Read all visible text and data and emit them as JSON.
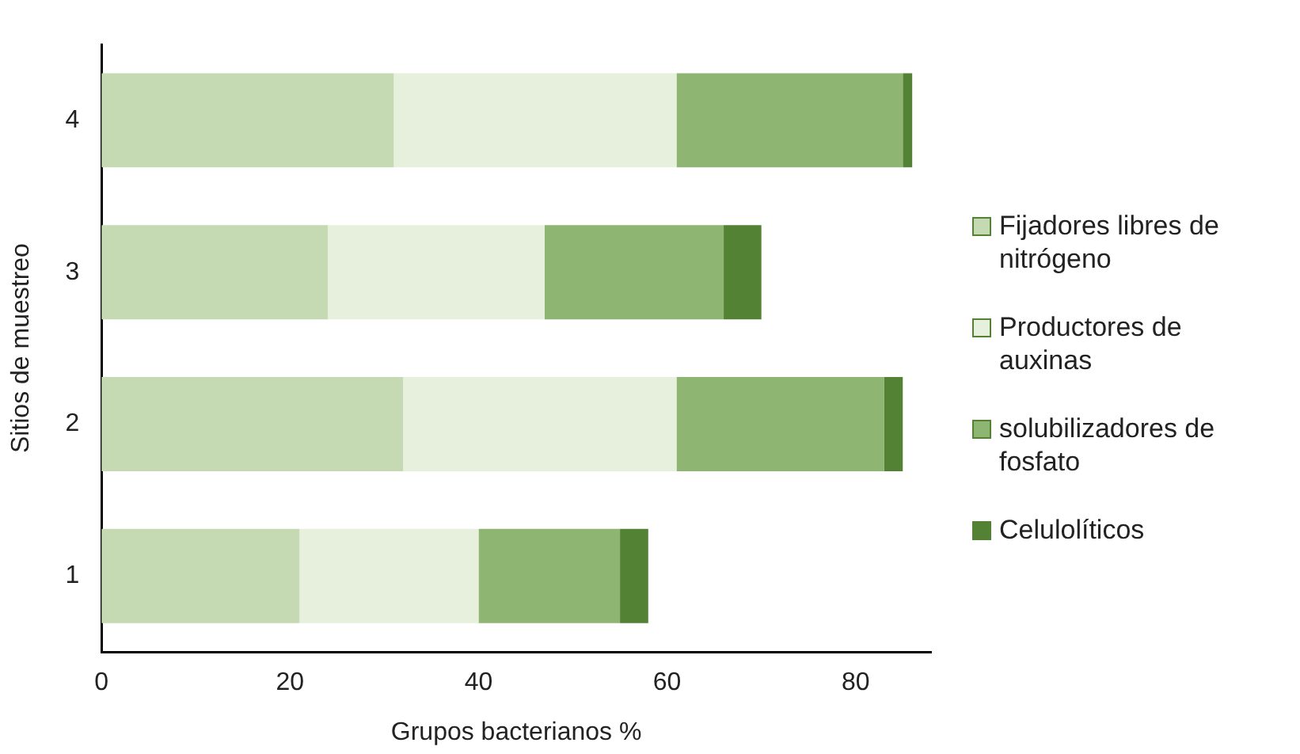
{
  "chart_data": {
    "type": "bar",
    "orientation": "horizontal",
    "stacked": true,
    "xlabel": "Grupos bacterianos %",
    "ylabel": "Sitios de muestreo",
    "categories": [
      "4",
      "3",
      "2",
      "1"
    ],
    "series": [
      {
        "name": "Fijadores libres de nitrógeno",
        "color": "#c5dab3",
        "values": [
          31,
          24,
          32,
          21
        ]
      },
      {
        "name": "Productores de auxinas",
        "color": "#e6f0dc",
        "values": [
          30,
          23,
          29,
          19
        ]
      },
      {
        "name": "solubilizadores de fosfato",
        "color": "#8fb573",
        "values": [
          24,
          19,
          22,
          15
        ]
      },
      {
        "name": "Celulolíticos",
        "color": "#548235",
        "values": [
          1,
          4,
          2,
          3
        ]
      }
    ],
    "xlim": [
      0,
      88
    ],
    "xticks": [
      0,
      20,
      40,
      60,
      80
    ],
    "grid": false,
    "legend": "right"
  }
}
